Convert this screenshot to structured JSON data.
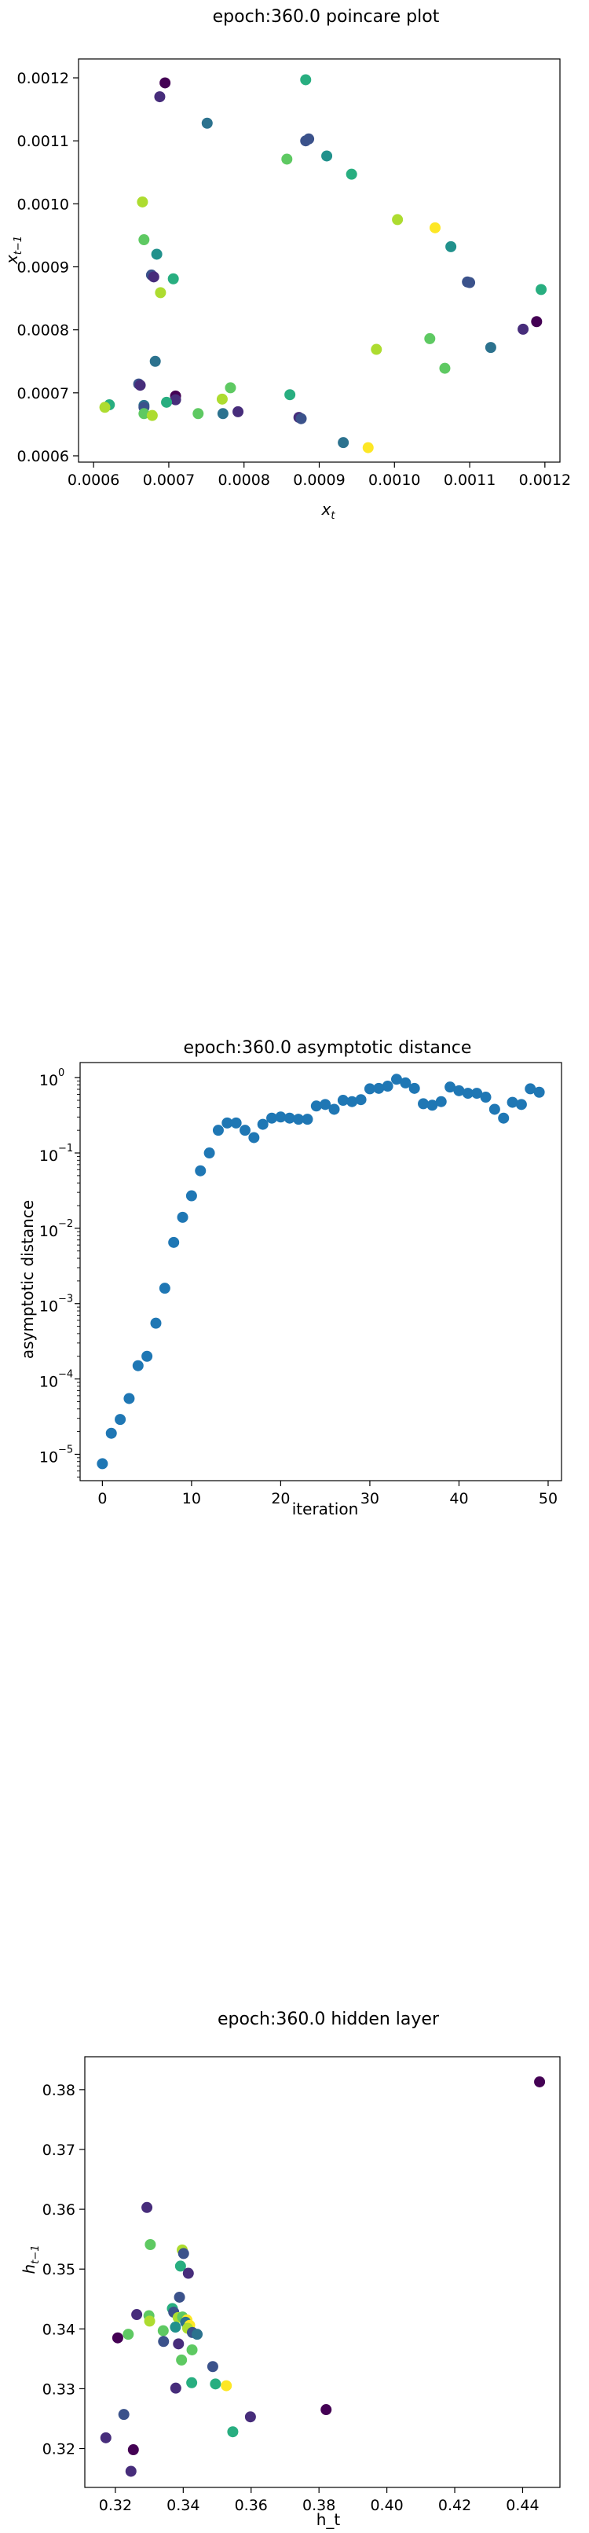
{
  "chart_data": [
    {
      "type": "scatter",
      "title": "epoch:360.0 poincare plot",
      "xlabel": "x_t",
      "ylabel": "x_{t-1}",
      "xlim": [
        0.00058,
        0.00122
      ],
      "ylim": [
        0.00059,
        0.00123
      ],
      "xticks": [
        0.0006,
        0.0007,
        0.0008,
        0.0009,
        0.001,
        0.0011,
        0.0012
      ],
      "xtick_labels": [
        "0.0006",
        "0.0007",
        "0.0008",
        "0.0009",
        "0.0010",
        "0.0011",
        "0.0012"
      ],
      "yticks": [
        0.0006,
        0.0007,
        0.0008,
        0.0009,
        0.001,
        0.0011,
        0.0012
      ],
      "ytick_labels": [
        "0.0006",
        "0.0007",
        "0.0008",
        "0.0009",
        "0.0010",
        "0.0011",
        "0.0012"
      ],
      "grid": false,
      "colormap": "viridis",
      "colors": {
        "purple": "#440154",
        "indigo": "#472d7b",
        "blue": "#3b528b",
        "teal": "#2c728e",
        "cyan": "#21918c",
        "green": "#28ae80",
        "lightgreen": "#5ec962",
        "lime": "#addc30",
        "yellow": "#fde725"
      },
      "points": [
        {
          "x": 0.000695,
          "y": 0.001192,
          "c": "purple"
        },
        {
          "x": 0.000688,
          "y": 0.00117,
          "c": "indigo"
        },
        {
          "x": 0.000751,
          "y": 0.001128,
          "c": "teal"
        },
        {
          "x": 0.000882,
          "y": 0.001197,
          "c": "green"
        },
        {
          "x": 0.000882,
          "y": 0.0011,
          "c": "blue"
        },
        {
          "x": 0.000886,
          "y": 0.001103,
          "c": "blue"
        },
        {
          "x": 0.000857,
          "y": 0.001071,
          "c": "lightgreen"
        },
        {
          "x": 0.00091,
          "y": 0.001076,
          "c": "cyan"
        },
        {
          "x": 0.000943,
          "y": 0.001047,
          "c": "green"
        },
        {
          "x": 0.000665,
          "y": 0.001003,
          "c": "lime"
        },
        {
          "x": 0.001004,
          "y": 0.000975,
          "c": "lime"
        },
        {
          "x": 0.001054,
          "y": 0.000962,
          "c": "yellow"
        },
        {
          "x": 0.000667,
          "y": 0.000943,
          "c": "lightgreen"
        },
        {
          "x": 0.001075,
          "y": 0.000932,
          "c": "cyan"
        },
        {
          "x": 0.000684,
          "y": 0.00092,
          "c": "cyan"
        },
        {
          "x": 0.000677,
          "y": 0.000887,
          "c": "blue"
        },
        {
          "x": 0.00068,
          "y": 0.000884,
          "c": "indigo"
        },
        {
          "x": 0.000706,
          "y": 0.000881,
          "c": "green"
        },
        {
          "x": 0.001097,
          "y": 0.000876,
          "c": "blue"
        },
        {
          "x": 0.0011,
          "y": 0.000875,
          "c": "blue"
        },
        {
          "x": 0.001195,
          "y": 0.000864,
          "c": "green"
        },
        {
          "x": 0.000689,
          "y": 0.000859,
          "c": "lime"
        },
        {
          "x": 0.001189,
          "y": 0.000813,
          "c": "purple"
        },
        {
          "x": 0.001171,
          "y": 0.000801,
          "c": "indigo"
        },
        {
          "x": 0.001047,
          "y": 0.000786,
          "c": "lightgreen"
        },
        {
          "x": 0.001128,
          "y": 0.000772,
          "c": "teal"
        },
        {
          "x": 0.000976,
          "y": 0.000769,
          "c": "lime"
        },
        {
          "x": 0.000682,
          "y": 0.00075,
          "c": "teal"
        },
        {
          "x": 0.001067,
          "y": 0.000739,
          "c": "lightgreen"
        },
        {
          "x": 0.00066,
          "y": 0.000714,
          "c": "blue"
        },
        {
          "x": 0.000662,
          "y": 0.000712,
          "c": "indigo"
        },
        {
          "x": 0.000782,
          "y": 0.000708,
          "c": "lightgreen"
        },
        {
          "x": 0.000861,
          "y": 0.000697,
          "c": "green"
        },
        {
          "x": 0.000709,
          "y": 0.000695,
          "c": "purple"
        },
        {
          "x": 0.000771,
          "y": 0.00069,
          "c": "lime"
        },
        {
          "x": 0.000709,
          "y": 0.000689,
          "c": "indigo"
        },
        {
          "x": 0.000697,
          "y": 0.000685,
          "c": "green"
        },
        {
          "x": 0.000621,
          "y": 0.000681,
          "c": "green"
        },
        {
          "x": 0.000667,
          "y": 0.00068,
          "c": "teal"
        },
        {
          "x": 0.000667,
          "y": 0.000677,
          "c": "blue"
        },
        {
          "x": 0.000615,
          "y": 0.000677,
          "c": "lime"
        },
        {
          "x": 0.000792,
          "y": 0.00067,
          "c": "indigo"
        },
        {
          "x": 0.000739,
          "y": 0.000667,
          "c": "lightgreen"
        },
        {
          "x": 0.000772,
          "y": 0.000667,
          "c": "teal"
        },
        {
          "x": 0.000667,
          "y": 0.000667,
          "c": "lightgreen"
        },
        {
          "x": 0.000678,
          "y": 0.000664,
          "c": "lime"
        },
        {
          "x": 0.000873,
          "y": 0.000661,
          "c": "indigo"
        },
        {
          "x": 0.000876,
          "y": 0.000659,
          "c": "blue"
        },
        {
          "x": 0.000932,
          "y": 0.000621,
          "c": "teal"
        },
        {
          "x": 0.000965,
          "y": 0.000613,
          "c": "yellow"
        }
      ]
    },
    {
      "type": "scatter",
      "title": "epoch:360.0 asymptotic distance",
      "xlabel": "iteration",
      "ylabel": "asymptotic distance",
      "yscale": "log",
      "xlim": [
        -2.5,
        51.5
      ],
      "ylim_exp": [
        -5.35,
        0.2
      ],
      "xticks": [
        0,
        10,
        20,
        30,
        40,
        50
      ],
      "xtick_labels": [
        "0",
        "10",
        "20",
        "30",
        "40",
        "50"
      ],
      "yticks_exp": [
        -5,
        -4,
        -3,
        -2,
        -1,
        0
      ],
      "ytick_labels": [
        "10",
        "10",
        "10",
        "10",
        "10",
        "10"
      ],
      "ytick_sups": [
        "−5",
        "−4",
        "−3",
        "−2",
        "−1",
        "0"
      ],
      "grid": false,
      "color": "#1f77b4",
      "x": [
        0,
        1,
        2,
        3,
        4,
        5,
        6,
        7,
        8,
        9,
        10,
        11,
        12,
        13,
        14,
        15,
        16,
        17,
        18,
        19,
        20,
        21,
        22,
        23,
        24,
        25,
        26,
        27,
        28,
        29,
        30,
        31,
        32,
        33,
        34,
        35,
        36,
        37,
        38,
        39,
        40,
        41,
        42,
        43,
        44,
        45,
        46,
        47,
        48,
        49
      ],
      "y": [
        7.5e-06,
        1.9e-05,
        2.9e-05,
        5.5e-05,
        0.00015,
        0.0002,
        0.00055,
        0.0016,
        0.0065,
        0.014,
        0.027,
        0.058,
        0.1,
        0.2,
        0.25,
        0.25,
        0.2,
        0.16,
        0.24,
        0.29,
        0.3,
        0.29,
        0.28,
        0.28,
        0.42,
        0.44,
        0.38,
        0.5,
        0.48,
        0.51,
        0.71,
        0.72,
        0.77,
        0.95,
        0.85,
        0.72,
        0.45,
        0.43,
        0.48,
        0.75,
        0.67,
        0.62,
        0.62,
        0.55,
        0.38,
        0.29,
        0.47,
        0.44,
        0.71,
        0.64
      ]
    },
    {
      "type": "scatter",
      "title": "epoch:360.0 hidden layer",
      "xlabel": "h_t",
      "ylabel": "h_{t-1}",
      "xlim": [
        0.311,
        0.451
      ],
      "ylim": [
        0.3135,
        0.3855
      ],
      "xticks": [
        0.32,
        0.34,
        0.36,
        0.38,
        0.4,
        0.42,
        0.44
      ],
      "xtick_labels": [
        "0.32",
        "0.34",
        "0.36",
        "0.38",
        "0.40",
        "0.42",
        "0.44"
      ],
      "yticks": [
        0.32,
        0.33,
        0.34,
        0.35,
        0.36,
        0.37,
        0.38
      ],
      "ytick_labels": [
        "0.32",
        "0.33",
        "0.34",
        "0.35",
        "0.36",
        "0.37",
        "0.38"
      ],
      "grid": false,
      "colormap": "viridis",
      "colors": {
        "purple": "#440154",
        "indigo": "#472d7b",
        "blue": "#3b528b",
        "teal": "#2c728e",
        "cyan": "#21918c",
        "green": "#28ae80",
        "lightgreen": "#5ec962",
        "lime": "#addc30",
        "yellow": "#fde725"
      },
      "points": [
        {
          "x": 0.445,
          "y": 0.3813,
          "c": "purple"
        },
        {
          "x": 0.3293,
          "y": 0.3603,
          "c": "indigo"
        },
        {
          "x": 0.3303,
          "y": 0.3541,
          "c": "lightgreen"
        },
        {
          "x": 0.3397,
          "y": 0.3532,
          "c": "lime"
        },
        {
          "x": 0.3401,
          "y": 0.3526,
          "c": "blue"
        },
        {
          "x": 0.3392,
          "y": 0.3505,
          "c": "green"
        },
        {
          "x": 0.3415,
          "y": 0.3493,
          "c": "indigo"
        },
        {
          "x": 0.3389,
          "y": 0.3453,
          "c": "blue"
        },
        {
          "x": 0.3368,
          "y": 0.3434,
          "c": "green"
        },
        {
          "x": 0.3372,
          "y": 0.3428,
          "c": "blue"
        },
        {
          "x": 0.3263,
          "y": 0.3424,
          "c": "indigo"
        },
        {
          "x": 0.3299,
          "y": 0.3422,
          "c": "lightgreen"
        },
        {
          "x": 0.3385,
          "y": 0.3419,
          "c": "lime"
        },
        {
          "x": 0.3398,
          "y": 0.342,
          "c": "lightgreen"
        },
        {
          "x": 0.3411,
          "y": 0.3415,
          "c": "yellow"
        },
        {
          "x": 0.3301,
          "y": 0.3413,
          "c": "lime"
        },
        {
          "x": 0.3407,
          "y": 0.3411,
          "c": "teal"
        },
        {
          "x": 0.3419,
          "y": 0.3406,
          "c": "yellow"
        },
        {
          "x": 0.3377,
          "y": 0.3403,
          "c": "cyan"
        },
        {
          "x": 0.3413,
          "y": 0.3401,
          "c": "lime"
        },
        {
          "x": 0.3341,
          "y": 0.3397,
          "c": "lightgreen"
        },
        {
          "x": 0.3427,
          "y": 0.3394,
          "c": "blue"
        },
        {
          "x": 0.3238,
          "y": 0.3391,
          "c": "lightgreen"
        },
        {
          "x": 0.3441,
          "y": 0.3391,
          "c": "teal"
        },
        {
          "x": 0.3207,
          "y": 0.3385,
          "c": "purple"
        },
        {
          "x": 0.3342,
          "y": 0.3379,
          "c": "blue"
        },
        {
          "x": 0.3386,
          "y": 0.3375,
          "c": "indigo"
        },
        {
          "x": 0.3426,
          "y": 0.3365,
          "c": "lightgreen"
        },
        {
          "x": 0.3395,
          "y": 0.3348,
          "c": "lightgreen"
        },
        {
          "x": 0.3487,
          "y": 0.3337,
          "c": "blue"
        },
        {
          "x": 0.3425,
          "y": 0.331,
          "c": "green"
        },
        {
          "x": 0.3495,
          "y": 0.3308,
          "c": "green"
        },
        {
          "x": 0.3527,
          "y": 0.3305,
          "c": "yellow"
        },
        {
          "x": 0.3378,
          "y": 0.3301,
          "c": "indigo"
        },
        {
          "x": 0.3821,
          "y": 0.3265,
          "c": "purple"
        },
        {
          "x": 0.3225,
          "y": 0.3257,
          "c": "blue"
        },
        {
          "x": 0.3598,
          "y": 0.3253,
          "c": "indigo"
        },
        {
          "x": 0.3546,
          "y": 0.3228,
          "c": "green"
        },
        {
          "x": 0.3172,
          "y": 0.3218,
          "c": "indigo"
        },
        {
          "x": 0.3253,
          "y": 0.3198,
          "c": "purple"
        },
        {
          "x": 0.3246,
          "y": 0.3162,
          "c": "indigo"
        }
      ]
    }
  ]
}
